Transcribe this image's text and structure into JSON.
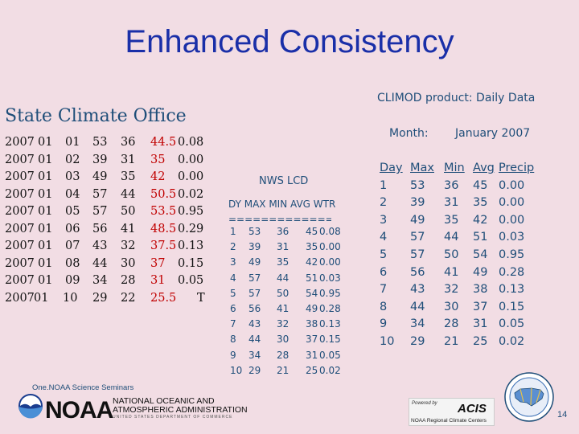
{
  "slide": {
    "title": "Enhanced Consistency",
    "page_number": "14",
    "footer_seminar": "One.NOAA Science Seminars"
  },
  "state_climate_office": {
    "title": "State Climate Office",
    "rows": [
      {
        "year": "2007",
        "month": "01",
        "day": "01",
        "max": "53",
        "min": "36",
        "avg": "44.5",
        "precip": "0.08"
      },
      {
        "year": "2007",
        "month": "01",
        "day": "02",
        "max": "39",
        "min": "31",
        "avg": "35",
        "precip": "0.00"
      },
      {
        "year": "2007",
        "month": "01",
        "day": "03",
        "max": "49",
        "min": "35",
        "avg": "42",
        "precip": "0.00"
      },
      {
        "year": "2007",
        "month": "01",
        "day": "04",
        "max": "57",
        "min": "44",
        "avg": "50.5",
        "precip": "0.02"
      },
      {
        "year": "2007",
        "month": "01",
        "day": "05",
        "max": "57",
        "min": "50",
        "avg": "53.5",
        "precip": "0.95"
      },
      {
        "year": "2007",
        "month": "01",
        "day": "06",
        "max": "56",
        "min": "41",
        "avg": "48.5",
        "precip": "0.29"
      },
      {
        "year": "2007",
        "month": "01",
        "day": "07",
        "max": "43",
        "min": "32",
        "avg": "37.5",
        "precip": "0.13"
      },
      {
        "year": "2007",
        "month": "01",
        "day": "08",
        "max": "44",
        "min": "30",
        "avg": "37",
        "precip": "0.15"
      },
      {
        "year": "2007",
        "month": "01",
        "day": "09",
        "max": "34",
        "min": "28",
        "avg": "31",
        "precip": "0.05"
      },
      {
        "year": "2007",
        "month": "01",
        "day": "10",
        "max": "29",
        "min": "22",
        "avg": "25.5",
        "precip": "T"
      }
    ]
  },
  "nws_lcd": {
    "title": "NWS LCD",
    "header": "DY MAX MIN AVG WTR",
    "separator": "=================",
    "rows": [
      {
        "dy": "1",
        "max": "53",
        "min": "36",
        "avg": "45",
        "wtr": "0.08"
      },
      {
        "dy": "2",
        "max": "39",
        "min": "31",
        "avg": "35",
        "wtr": "0.00"
      },
      {
        "dy": "3",
        "max": "49",
        "min": "35",
        "avg": "42",
        "wtr": "0.00"
      },
      {
        "dy": "4",
        "max": "57",
        "min": "44",
        "avg": "51",
        "wtr": "0.03"
      },
      {
        "dy": "5",
        "max": "57",
        "min": "50",
        "avg": "54",
        "wtr": "0.95"
      },
      {
        "dy": "6",
        "max": "56",
        "min": "41",
        "avg": "49",
        "wtr": "0.28"
      },
      {
        "dy": "7",
        "max": "43",
        "min": "32",
        "avg": "38",
        "wtr": "0.13"
      },
      {
        "dy": "8",
        "max": "44",
        "min": "30",
        "avg": "37",
        "wtr": "0.15"
      },
      {
        "dy": "9",
        "max": "34",
        "min": "28",
        "avg": "31",
        "wtr": "0.05"
      },
      {
        "dy": "10",
        "max": "29",
        "min": "21",
        "avg": "25",
        "wtr": "0.02"
      }
    ]
  },
  "climod": {
    "title": "CLIMOD product: Daily Data",
    "month_label": "Month:",
    "month_value": "January 2007",
    "headers": {
      "day": "Day",
      "max": "Max",
      "min": "Min",
      "avg": "Avg",
      "precip": "Precip"
    },
    "rows": [
      {
        "day": "1",
        "max": "53",
        "min": "36",
        "avg": "45",
        "precip": "0.00"
      },
      {
        "day": "2",
        "max": "39",
        "min": "31",
        "avg": "35",
        "precip": "0.00"
      },
      {
        "day": "3",
        "max": "49",
        "min": "35",
        "avg": "42",
        "precip": "0.00"
      },
      {
        "day": "4",
        "max": "57",
        "min": "44",
        "avg": "51",
        "precip": "0.03"
      },
      {
        "day": "5",
        "max": "57",
        "min": "50",
        "avg": "54",
        "precip": "0.95"
      },
      {
        "day": "6",
        "max": "56",
        "min": "41",
        "avg": "49",
        "precip": "0.28"
      },
      {
        "day": "7",
        "max": "43",
        "min": "32",
        "avg": "38",
        "precip": "0.13"
      },
      {
        "day": "8",
        "max": "44",
        "min": "30",
        "avg": "37",
        "precip": "0.15"
      },
      {
        "day": "9",
        "max": "34",
        "min": "28",
        "avg": "31",
        "precip": "0.05"
      },
      {
        "day": "10",
        "max": "29",
        "min": "21",
        "avg": "25",
        "precip": "0.02"
      }
    ]
  },
  "logos": {
    "noaa_wordmark": "NOAA",
    "noaa_name_line1": "NATIONAL OCEANIC AND",
    "noaa_name_line2": "ATMOSPHERIC ADMINISTRATION",
    "noaa_sub": "UNITED STATES DEPARTMENT OF COMMERCE",
    "acis_powered": "Powered by",
    "acis_word": "ACIS",
    "acis_bottom": "NOAA Regional Climate Centers",
    "noaa_logo_icon": "noaa-seagull-icon",
    "rcc_logo_icon": "regional-climate-centers-map-icon",
    "colors": {
      "title": "#1a2fa8",
      "text_blue": "#1f4e79",
      "avg_red": "#c00000",
      "background": "#f2dde4"
    }
  }
}
